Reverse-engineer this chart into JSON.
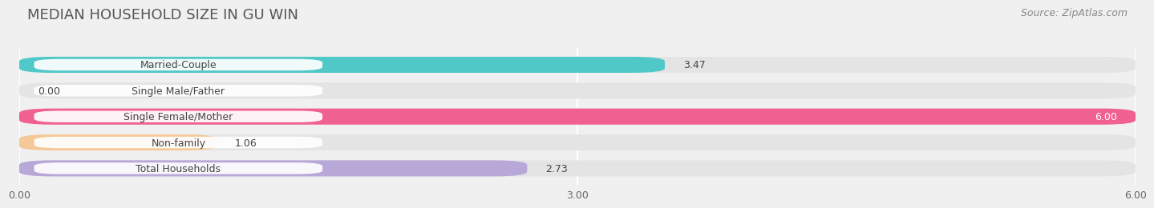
{
  "title": "MEDIAN HOUSEHOLD SIZE IN GU WIN",
  "source": "Source: ZipAtlas.com",
  "categories": [
    "Married-Couple",
    "Single Male/Father",
    "Single Female/Mother",
    "Non-family",
    "Total Households"
  ],
  "values": [
    3.47,
    0.0,
    6.0,
    1.06,
    2.73
  ],
  "bar_colors": [
    "#50c8c8",
    "#a8b8e8",
    "#f06090",
    "#f5c898",
    "#b8a8d8"
  ],
  "xlim": [
    0,
    6.0
  ],
  "xticks": [
    0.0,
    3.0,
    6.0
  ],
  "xtick_labels": [
    "0.00",
    "3.00",
    "6.00"
  ],
  "background_color": "#f0f0f0",
  "bar_bg_color": "#e4e4e4",
  "bar_height": 0.62,
  "title_fontsize": 13,
  "label_fontsize": 9,
  "value_fontsize": 9,
  "source_fontsize": 9
}
